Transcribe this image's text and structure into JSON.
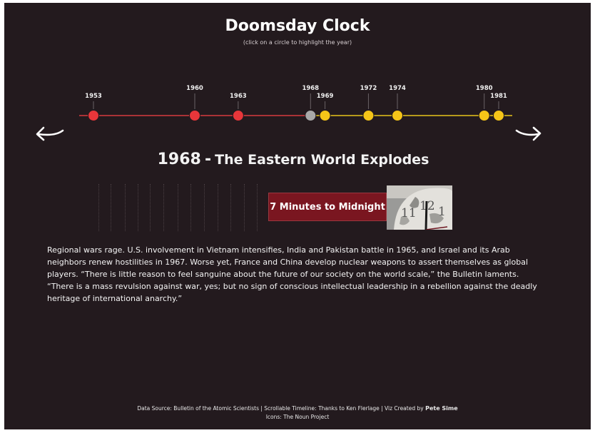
{
  "header": {
    "title": "Doomsday Clock",
    "subtitle": "(click on a circle to highlight the year)"
  },
  "timeline": {
    "years": [
      {
        "year": "1953",
        "status": "red"
      },
      {
        "year": "1960",
        "status": "red"
      },
      {
        "year": "1963",
        "status": "red"
      },
      {
        "year": "1968",
        "status": "selected"
      },
      {
        "year": "1969",
        "status": "yellow"
      },
      {
        "year": "1972",
        "status": "yellow"
      },
      {
        "year": "1974",
        "status": "yellow"
      },
      {
        "year": "1980",
        "status": "yellow"
      },
      {
        "year": "1981",
        "status": "yellow"
      }
    ],
    "selected_year": "1968",
    "colors": {
      "red": "#e8363a",
      "red_line": "#d83a3e",
      "yellow": "#f5c518",
      "yellow_line": "#e8c51a",
      "selected": "#a9a9a9"
    }
  },
  "nav": {
    "prev_icon": "arrow-left-curved-icon",
    "next_icon": "arrow-right-curved-icon"
  },
  "event": {
    "year": "1968",
    "separator": "-",
    "title": "The Eastern World Explodes",
    "minutes_label": "7 Minutes to Midnight",
    "description": "Regional wars rage. U.S. involvement in Vietnam intensifies, India and Pakistan battle in 1965, and Israel and its Arab neighbors renew hostilities in 1967. Worse yet, France and China develop nuclear weapons to assert themselves as global players. “There is little reason to feel sanguine about the future of our society on the world scale,” the Bulletin laments. “There is a mass revulsion against war, yes; but no sign of conscious intellectual leadership in a rebellion against the deadly heritage of international anarchy.”"
  },
  "clock_image": {
    "icon": "clock-face-icon",
    "numerals": [
      "11",
      "12",
      "1"
    ]
  },
  "footer": {
    "line1_prefix": "Data Source: Bulletin of the Atomic Scientists | Scrollable Timeline: Thanks to Ken Flerlage | Viz Created by",
    "line1_author": "Pete Sime",
    "line2": "Icons: The Noun Project"
  }
}
